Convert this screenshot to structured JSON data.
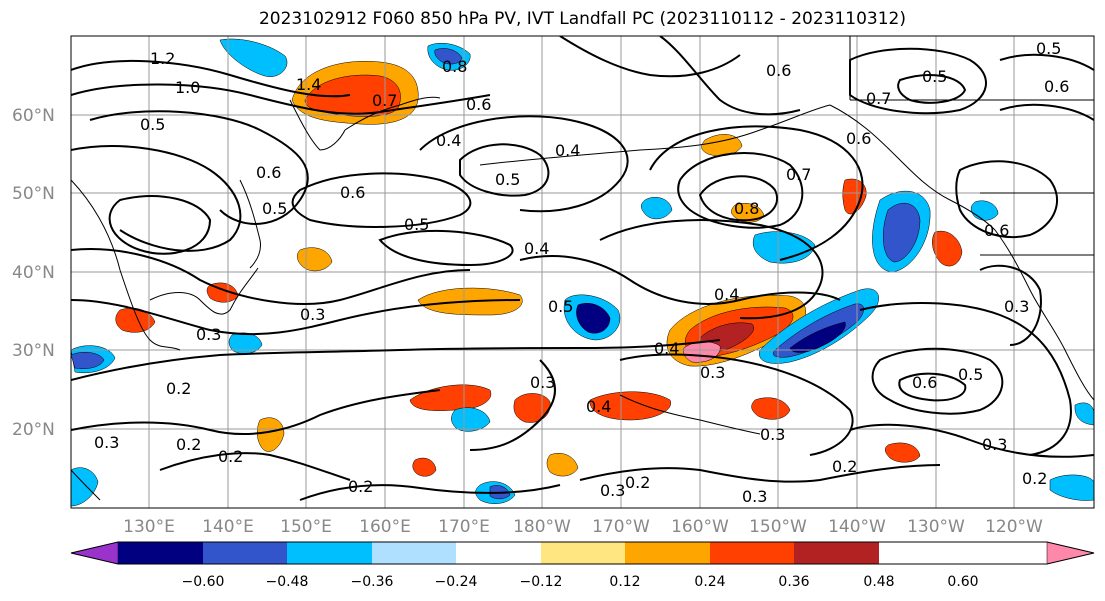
{
  "title": "2023102912 F060 850 hPa PV, IVT Landfall PC (2023110112 - 2023110312)",
  "lat_labels": [
    "60°N",
    "50°N",
    "40°N",
    "30°N",
    "20°N"
  ],
  "lon_labels": [
    "130°E",
    "140°E",
    "150°E",
    "160°E",
    "170°E",
    "180°W",
    "170°W",
    "160°W",
    "150°W",
    "140°W",
    "130°W",
    "120°W"
  ],
  "colorbar": {
    "ticks": [
      "−0.60",
      "−0.48",
      "−0.36",
      "−0.24",
      "−0.12",
      "0.12",
      "0.24",
      "0.36",
      "0.48",
      "0.60"
    ],
    "colors": [
      "#9933cc",
      "#000080",
      "#3355cc",
      "#00bfff",
      "#b0e0ff",
      "#ffffff",
      "#ffe680",
      "#ffa500",
      "#ff4000",
      "#b22222",
      "#ff88aa"
    ]
  },
  "contour_labels": [
    "1.2",
    "1.0",
    "1.4",
    "0.7",
    "0.8",
    "0.6",
    "0.5",
    "0.4",
    "0.6",
    "0.5",
    "0.6",
    "0.5",
    "0.4",
    "0.5",
    "0.4",
    "0.3",
    "0.3",
    "0.2",
    "0.4",
    "0.5",
    "0.4",
    "0.3",
    "0.3",
    "0.2",
    "0.2",
    "0.3",
    "0.2",
    "0.4",
    "0.3",
    "0.2",
    "0.3",
    "0.3",
    "0.2",
    "0.6",
    "0.7",
    "0.8",
    "0.6",
    "0.7",
    "0.6",
    "0.5",
    "0.6",
    "0.3",
    "0.6",
    "0.5",
    "0.3",
    "0.2",
    "0.5"
  ]
}
